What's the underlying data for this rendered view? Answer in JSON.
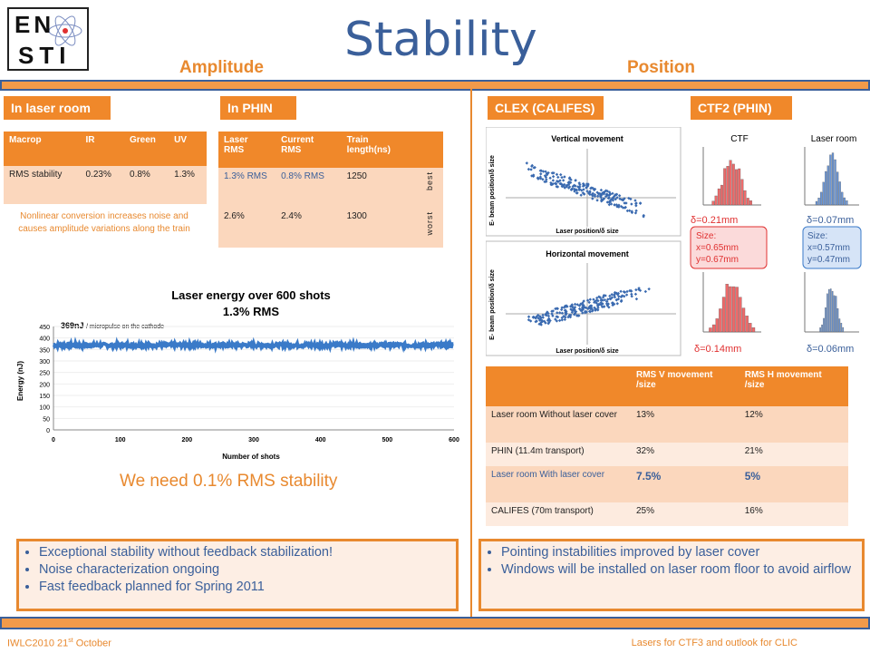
{
  "logo": {
    "line1": "EN",
    "line2": "STI"
  },
  "title": "Stability",
  "subtitles": {
    "amplitude": "Amplitude",
    "position": "Position"
  },
  "tags": {
    "laser_room": "In laser room",
    "phin": "In PHIN",
    "clex": "CLEX (CALIFES)",
    "ctf2": "CTF2 (PHIN)"
  },
  "table1": {
    "headers": [
      "Macrop",
      "IR",
      "Green",
      "UV"
    ],
    "row": [
      "RMS stability",
      "0.23%",
      "0.8%",
      "1.3%"
    ]
  },
  "note": "Nonlinear conversion increases noise and causes amplitude variations along the train",
  "table2": {
    "headers": [
      "Laser RMS",
      "Current RMS",
      "Train length(ns)",
      ""
    ],
    "rows": [
      [
        "1.3% RMS",
        "0.8% RMS",
        "1250",
        "best"
      ],
      [
        "2.6%",
        "2.4%",
        "1300",
        "worst"
      ]
    ]
  },
  "energy_chart": {
    "title_line1": "Laser energy over 600 shots",
    "title_line2": "1.3% RMS",
    "annotation_value": "369nJ",
    "annotation_text": "/ micropulse on the cathode",
    "xlabel": "Number of shots",
    "ylabel": "Energy (nJ)",
    "xticks": [
      "0",
      "100",
      "200",
      "300",
      "400",
      "500",
      "600"
    ],
    "yticks": [
      "0",
      "50",
      "100",
      "150",
      "200",
      "250",
      "300",
      "350",
      "400",
      "450"
    ]
  },
  "chart_data": {
    "type": "scatter",
    "title": "Laser energy over 600 shots",
    "subtitle": "1.3% RMS",
    "xlabel": "Number of shots",
    "ylabel": "Energy (nJ)",
    "xlim": [
      0,
      600
    ],
    "ylim": [
      0,
      450
    ],
    "mean": 369,
    "rms_percent": 1.3,
    "n_points": 600
  },
  "need": "We need 0.1% RMS stability",
  "clex": {
    "vertical_title": "Vertical movement",
    "horizontal_title": "Horizontal movement",
    "xlabel": "Laser position/δ size",
    "ylabel": "E- beam position/δ size"
  },
  "ctf2": {
    "ctf_label": "CTF",
    "laser_room_label": "Laser room",
    "d1": "δ=0.21mm",
    "d2": "δ=0.07mm",
    "size1": [
      "Size:",
      "x=0.65mm",
      "y=0.67mm"
    ],
    "size2": [
      "Size:",
      "x=0.57mm",
      "y=0.47mm"
    ],
    "d3": "δ=0.14mm",
    "d4": "δ=0.06mm"
  },
  "table3": {
    "headers": [
      "",
      "RMS V movement /size",
      "RMS H movement /size"
    ],
    "rows": [
      [
        "Laser room Without laser cover",
        "13%",
        "12%"
      ],
      [
        "PHIN (11.4m transport)",
        "32%",
        "21%"
      ],
      [
        "Laser room With laser cover",
        "7.5%",
        "5%"
      ],
      [
        "CALIFES (70m transport)",
        "25%",
        "16%"
      ]
    ]
  },
  "left_bullets": [
    "Exceptional stability without feedback stabilization!",
    "Noise characterization ongoing",
    "Fast feedback planned for Spring 2011"
  ],
  "right_bullets": [
    "Pointing instabilities improved by laser cover",
    "Windows will be installed on laser room floor to avoid airflow"
  ],
  "footer": {
    "left_prefix": "IWLC2010 21",
    "left_sup": "st",
    "left_suffix": " October",
    "right": "Lasers for CTF3 and outlook for CLIC"
  }
}
